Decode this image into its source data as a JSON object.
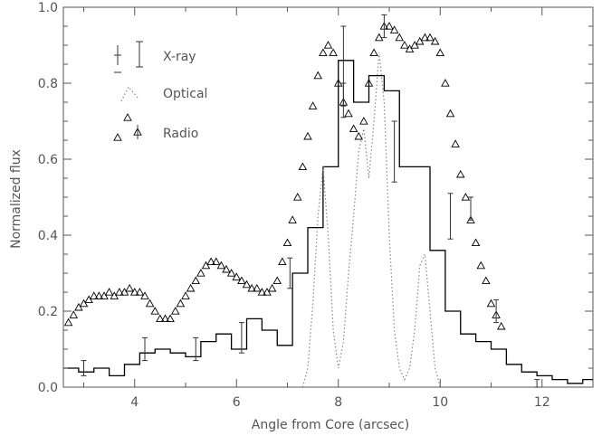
{
  "chart_data": {
    "type": "line",
    "title": "",
    "xlabel": "Angle from Core (arcsec)",
    "ylabel": "Normalized flux",
    "xlim": [
      2.6,
      13.0
    ],
    "ylim": [
      0.0,
      1.0
    ],
    "xticks": [
      4,
      6,
      8,
      10,
      12
    ],
    "yticks": [
      0.0,
      0.2,
      0.4,
      0.6,
      0.8,
      1.0
    ],
    "grid": false,
    "legend_placement": "top-left",
    "legend": [
      "X-ray",
      "Optical",
      "Radio"
    ],
    "series": [
      {
        "name": "X-ray",
        "style": "step",
        "color": "#000000",
        "x": [
          2.6,
          2.9,
          3.2,
          3.5,
          3.8,
          4.1,
          4.4,
          4.7,
          5.0,
          5.3,
          5.6,
          5.9,
          6.2,
          6.5,
          6.8,
          7.1,
          7.4,
          7.7,
          8.0,
          8.3,
          8.6,
          8.9,
          9.2,
          9.5,
          9.8,
          10.1,
          10.4,
          10.7,
          11.0,
          11.3,
          11.6,
          11.9,
          12.2,
          12.5,
          12.8
        ],
        "y": [
          0.05,
          0.04,
          0.05,
          0.03,
          0.06,
          0.09,
          0.1,
          0.09,
          0.08,
          0.12,
          0.14,
          0.1,
          0.18,
          0.15,
          0.11,
          0.3,
          0.42,
          0.58,
          0.86,
          0.75,
          0.82,
          0.78,
          0.58,
          0.58,
          0.36,
          0.2,
          0.14,
          0.12,
          0.1,
          0.06,
          0.04,
          0.03,
          0.02,
          0.01,
          0.02
        ]
      },
      {
        "name": "Optical",
        "style": "dotted",
        "color": "#888888",
        "x": [
          7.3,
          7.4,
          7.5,
          7.6,
          7.7,
          7.8,
          7.9,
          8.0,
          8.1,
          8.2,
          8.3,
          8.4,
          8.5,
          8.6,
          8.7,
          8.8,
          8.9,
          9.0,
          9.1,
          9.2,
          9.3,
          9.4,
          9.5,
          9.6,
          9.7,
          9.8,
          9.9,
          10.0
        ],
        "y": [
          0.0,
          0.05,
          0.22,
          0.45,
          0.58,
          0.4,
          0.15,
          0.05,
          0.12,
          0.3,
          0.45,
          0.62,
          0.68,
          0.55,
          0.7,
          0.88,
          0.75,
          0.4,
          0.15,
          0.05,
          0.02,
          0.05,
          0.15,
          0.32,
          0.35,
          0.2,
          0.05,
          0.0
        ]
      },
      {
        "name": "Radio",
        "style": "triangles",
        "color": "#000000",
        "x": [
          2.7,
          2.8,
          2.9,
          3.0,
          3.1,
          3.2,
          3.3,
          3.4,
          3.5,
          3.6,
          3.7,
          3.8,
          3.9,
          4.0,
          4.1,
          4.2,
          4.3,
          4.4,
          4.5,
          4.6,
          4.7,
          4.8,
          4.9,
          5.0,
          5.1,
          5.2,
          5.3,
          5.4,
          5.5,
          5.6,
          5.7,
          5.8,
          5.9,
          6.0,
          6.1,
          6.2,
          6.3,
          6.4,
          6.5,
          6.6,
          6.7,
          6.8,
          6.9,
          7.0,
          7.1,
          7.2,
          7.3,
          7.4,
          7.5,
          7.6,
          7.7,
          7.8,
          7.9,
          8.0,
          8.1,
          8.2,
          8.3,
          8.4,
          8.5,
          8.6,
          8.7,
          8.8,
          8.9,
          9.0,
          9.1,
          9.2,
          9.3,
          9.4,
          9.5,
          9.6,
          9.7,
          9.8,
          9.9,
          10.0,
          10.1,
          10.2,
          10.3,
          10.4,
          10.5,
          10.6,
          10.7,
          10.8,
          10.9,
          11.0,
          11.1,
          11.2
        ],
        "y": [
          0.17,
          0.19,
          0.21,
          0.22,
          0.23,
          0.24,
          0.24,
          0.24,
          0.25,
          0.24,
          0.25,
          0.25,
          0.26,
          0.25,
          0.25,
          0.24,
          0.22,
          0.2,
          0.18,
          0.18,
          0.18,
          0.2,
          0.22,
          0.24,
          0.26,
          0.28,
          0.3,
          0.32,
          0.33,
          0.33,
          0.32,
          0.31,
          0.3,
          0.29,
          0.28,
          0.27,
          0.26,
          0.26,
          0.25,
          0.25,
          0.26,
          0.28,
          0.33,
          0.38,
          0.44,
          0.5,
          0.58,
          0.66,
          0.74,
          0.82,
          0.88,
          0.9,
          0.88,
          0.8,
          0.75,
          0.72,
          0.68,
          0.66,
          0.7,
          0.8,
          0.88,
          0.92,
          0.95,
          0.95,
          0.94,
          0.92,
          0.9,
          0.89,
          0.9,
          0.91,
          0.92,
          0.92,
          0.91,
          0.88,
          0.8,
          0.72,
          0.64,
          0.56,
          0.5,
          0.44,
          0.38,
          0.32,
          0.28,
          0.22,
          0.19,
          0.16
        ]
      }
    ],
    "error_bars": [
      {
        "series": "X-ray",
        "x": 3.0,
        "y": 0.05,
        "err": 0.02
      },
      {
        "series": "X-ray",
        "x": 4.2,
        "y": 0.1,
        "err": 0.03
      },
      {
        "series": "X-ray",
        "x": 5.2,
        "y": 0.1,
        "err": 0.03
      },
      {
        "series": "X-ray",
        "x": 6.1,
        "y": 0.13,
        "err": 0.04
      },
      {
        "series": "X-ray",
        "x": 7.05,
        "y": 0.3,
        "err": 0.04
      },
      {
        "series": "X-ray",
        "x": 8.1,
        "y": 0.83,
        "err": 0.12
      },
      {
        "series": "X-ray",
        "x": 9.1,
        "y": 0.62,
        "err": 0.08
      },
      {
        "series": "X-ray",
        "x": 10.2,
        "y": 0.45,
        "err": 0.06
      },
      {
        "series": "X-ray",
        "x": 11.9,
        "y": 0.01,
        "err": 0.01
      },
      {
        "series": "Radio",
        "x": 8.1,
        "y": 0.77,
        "err": 0.03
      },
      {
        "series": "Radio",
        "x": 8.9,
        "y": 0.95,
        "err": 0.03
      },
      {
        "series": "Radio",
        "x": 10.6,
        "y": 0.47,
        "err": 0.03
      },
      {
        "series": "Radio",
        "x": 11.1,
        "y": 0.2,
        "err": 0.03
      }
    ]
  }
}
